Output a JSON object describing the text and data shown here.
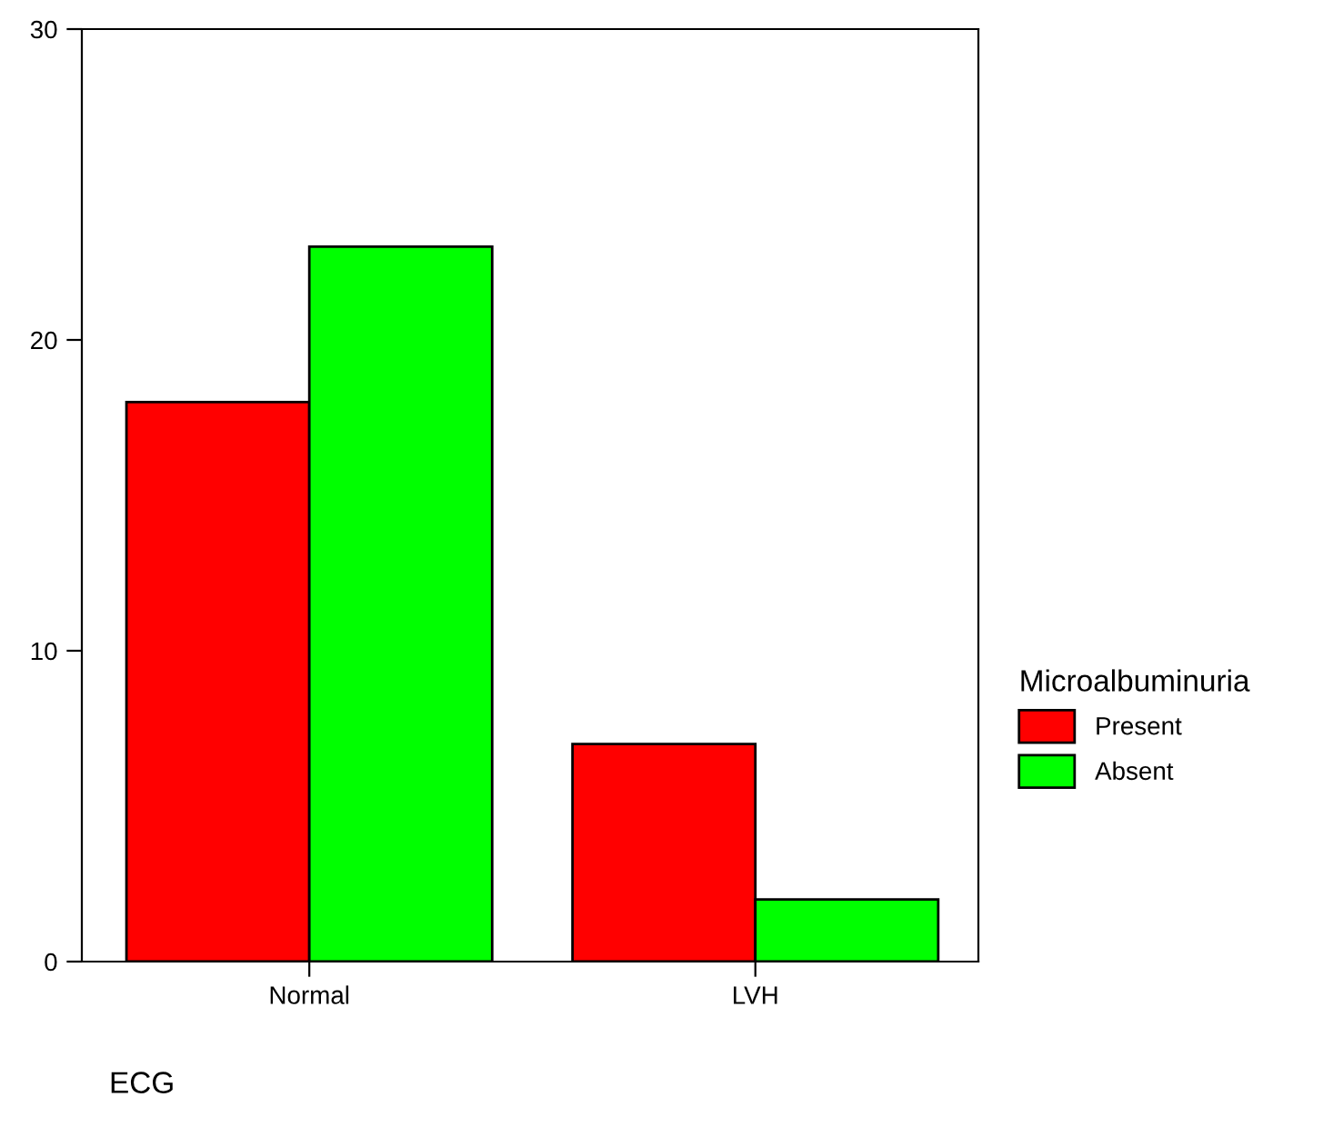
{
  "chart_data": {
    "type": "bar",
    "xlabel": "ECG",
    "legend_title": "Microalbuminuria",
    "categories": [
      "Normal",
      "LVH"
    ],
    "series": [
      {
        "name": "Present",
        "color": "#ff0000",
        "values": [
          18,
          7
        ]
      },
      {
        "name": "Absent",
        "color": "#00ff00",
        "values": [
          23,
          2
        ]
      }
    ],
    "ylim": [
      0,
      30
    ],
    "yticks": [
      0,
      10,
      20,
      30
    ],
    "grid": false,
    "legend": "right"
  }
}
